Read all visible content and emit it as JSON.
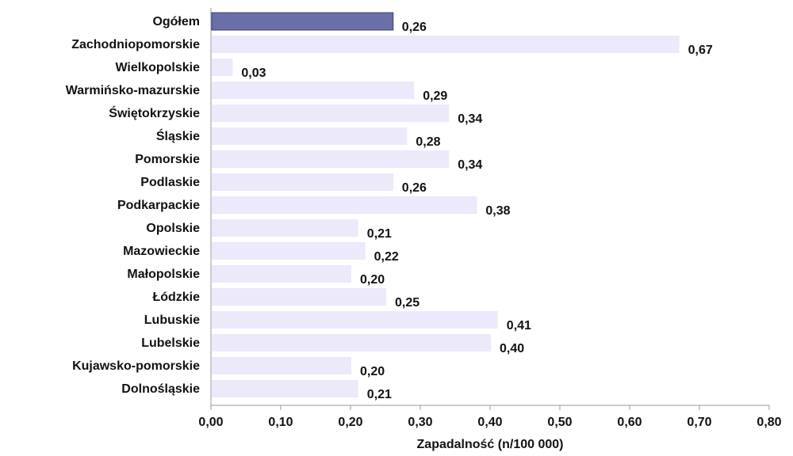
{
  "chart_data": {
    "type": "bar",
    "orientation": "horizontal",
    "categories": [
      "Ogółem",
      "Zachodniopomorskie",
      "Wielkopolskie",
      "Warmińsko-mazurskie",
      "Świętokrzyskie",
      "Śląskie",
      "Pomorskie",
      "Podlaskie",
      "Podkarpackie",
      "Opolskie",
      "Mazowieckie",
      "Małopolskie",
      "Łódzkie",
      "Lubuskie",
      "Lubelskie",
      "Kujawsko-pomorskie",
      "Dolnośląskie"
    ],
    "values": [
      0.26,
      0.67,
      0.03,
      0.29,
      0.34,
      0.28,
      0.34,
      0.26,
      0.38,
      0.21,
      0.22,
      0.2,
      0.25,
      0.41,
      0.4,
      0.2,
      0.21
    ],
    "value_labels": [
      "0,26",
      "0,67",
      "0,03",
      "0,29",
      "0,34",
      "0,28",
      "0,34",
      "0,26",
      "0,38",
      "0,21",
      "0,22",
      "0,20",
      "0,25",
      "0,41",
      "0,40",
      "0,20",
      "0,21"
    ],
    "title": "",
    "xlabel": "Zapadalność (n/100 000)",
    "ylabel": "",
    "xlim": [
      0,
      0.8
    ],
    "xticks": [
      0,
      0.1,
      0.2,
      0.3,
      0.4,
      0.5,
      0.6,
      0.7,
      0.8
    ],
    "xtick_labels": [
      "0,00",
      "0,10",
      "0,20",
      "0,30",
      "0,40",
      "0,50",
      "0,60",
      "0,70",
      "0,80"
    ],
    "grid": false,
    "colors": {
      "highlight_bar": "#6b6fa8",
      "highlight_border": "#3c3f73",
      "bar": "#ebe9fa",
      "axis": "#9a9a9a"
    }
  }
}
